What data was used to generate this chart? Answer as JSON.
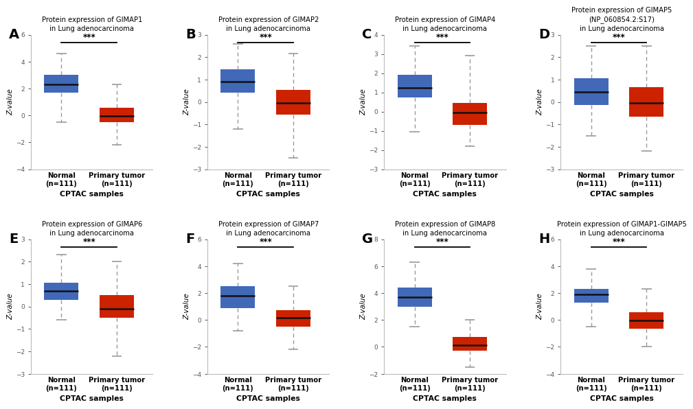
{
  "panels": [
    {
      "label": "A",
      "title": "Protein expression of GIMAP1\nin Lung adenocarcinoma",
      "normal": {
        "median": 2.3,
        "q1": 1.7,
        "q3": 3.0,
        "whislo": -0.5,
        "whishi": 4.6
      },
      "tumor": {
        "median": -0.05,
        "q1": -0.5,
        "q3": 0.55,
        "whislo": -2.2,
        "whishi": 2.3
      },
      "ylim": [
        -4,
        6
      ],
      "yticks": [
        -4,
        -2,
        0,
        2,
        4,
        6
      ]
    },
    {
      "label": "B",
      "title": "Protein expression of GIMAP2\nin Lung adenocarcinoma",
      "normal": {
        "median": 0.9,
        "q1": 0.4,
        "q3": 1.45,
        "whislo": -1.2,
        "whishi": 2.6
      },
      "tumor": {
        "median": -0.05,
        "q1": -0.55,
        "q3": 0.55,
        "whislo": -2.5,
        "whishi": 2.15
      },
      "ylim": [
        -3,
        3
      ],
      "yticks": [
        -3,
        -2,
        -1,
        0,
        1,
        2,
        3
      ]
    },
    {
      "label": "C",
      "title": "Protein expression of GIMAP4\nin Lung adenocarcinoma",
      "normal": {
        "median": 1.25,
        "q1": 0.75,
        "q3": 1.9,
        "whislo": -1.05,
        "whishi": 3.4
      },
      "tumor": {
        "median": -0.05,
        "q1": -0.7,
        "q3": 0.45,
        "whislo": -1.8,
        "whishi": 2.9
      },
      "ylim": [
        -3,
        4
      ],
      "yticks": [
        -3,
        -2,
        -1,
        0,
        1,
        2,
        3,
        4
      ]
    },
    {
      "label": "D",
      "title": "Protein expression of GIMAP5\n(NP_060854.2:S17)\nin Lung adenocarcinoma",
      "normal": {
        "median": 0.45,
        "q1": -0.15,
        "q3": 1.05,
        "whislo": -1.5,
        "whishi": 2.5
      },
      "tumor": {
        "median": -0.05,
        "q1": -0.65,
        "q3": 0.65,
        "whislo": -2.2,
        "whishi": 2.5
      },
      "ylim": [
        -3,
        3
      ],
      "yticks": [
        -3,
        -2,
        -1,
        0,
        1,
        2,
        3
      ]
    },
    {
      "label": "E",
      "title": "Protein expression of GIMAP6\nin Lung adenocarcinoma",
      "normal": {
        "median": 0.7,
        "q1": 0.3,
        "q3": 1.05,
        "whislo": -0.6,
        "whishi": 2.3
      },
      "tumor": {
        "median": -0.1,
        "q1": -0.5,
        "q3": 0.5,
        "whislo": -2.2,
        "whishi": 2.0
      },
      "ylim": [
        -3,
        3
      ],
      "yticks": [
        -3,
        -2,
        -1,
        0,
        1,
        2,
        3
      ]
    },
    {
      "label": "F",
      "title": "Protein expression of GIMAP7\nin Lung adenocarcinoma",
      "normal": {
        "median": 1.8,
        "q1": 0.9,
        "q3": 2.5,
        "whislo": -0.8,
        "whishi": 4.2
      },
      "tumor": {
        "median": 0.15,
        "q1": -0.5,
        "q3": 0.75,
        "whislo": -2.2,
        "whishi": 2.5
      },
      "ylim": [
        -4,
        6
      ],
      "yticks": [
        -4,
        -2,
        0,
        2,
        4,
        6
      ]
    },
    {
      "label": "G",
      "title": "Protein expression of GIMAP8\nin Lung adenocarcinoma",
      "normal": {
        "median": 3.7,
        "q1": 3.0,
        "q3": 4.4,
        "whislo": 1.5,
        "whishi": 6.3
      },
      "tumor": {
        "median": 0.15,
        "q1": -0.3,
        "q3": 0.75,
        "whislo": -1.5,
        "whishi": 2.0
      },
      "ylim": [
        -2,
        8
      ],
      "yticks": [
        -2,
        0,
        2,
        4,
        6,
        8
      ]
    },
    {
      "label": "H",
      "title": "Protein expression of GIMAP1-GIMAP5\nin Lung adenocarcinoma",
      "normal": {
        "median": 1.9,
        "q1": 1.3,
        "q3": 2.3,
        "whislo": -0.5,
        "whishi": 3.8
      },
      "tumor": {
        "median": -0.05,
        "q1": -0.65,
        "q3": 0.55,
        "whislo": -2.0,
        "whishi": 2.3
      },
      "ylim": [
        -4,
        6
      ],
      "yticks": [
        -4,
        -2,
        0,
        2,
        4,
        6
      ]
    }
  ],
  "normal_color": "#4169b8",
  "tumor_color": "#cc2200",
  "whisker_color": "#999999",
  "median_color": "#111111",
  "xlabel": "CPTAC samples",
  "ylabel": "Z-value",
  "xtick_labels": [
    "Normal\n(n=111)",
    "Primary tumor\n(n=111)"
  ],
  "sig_text": "***"
}
